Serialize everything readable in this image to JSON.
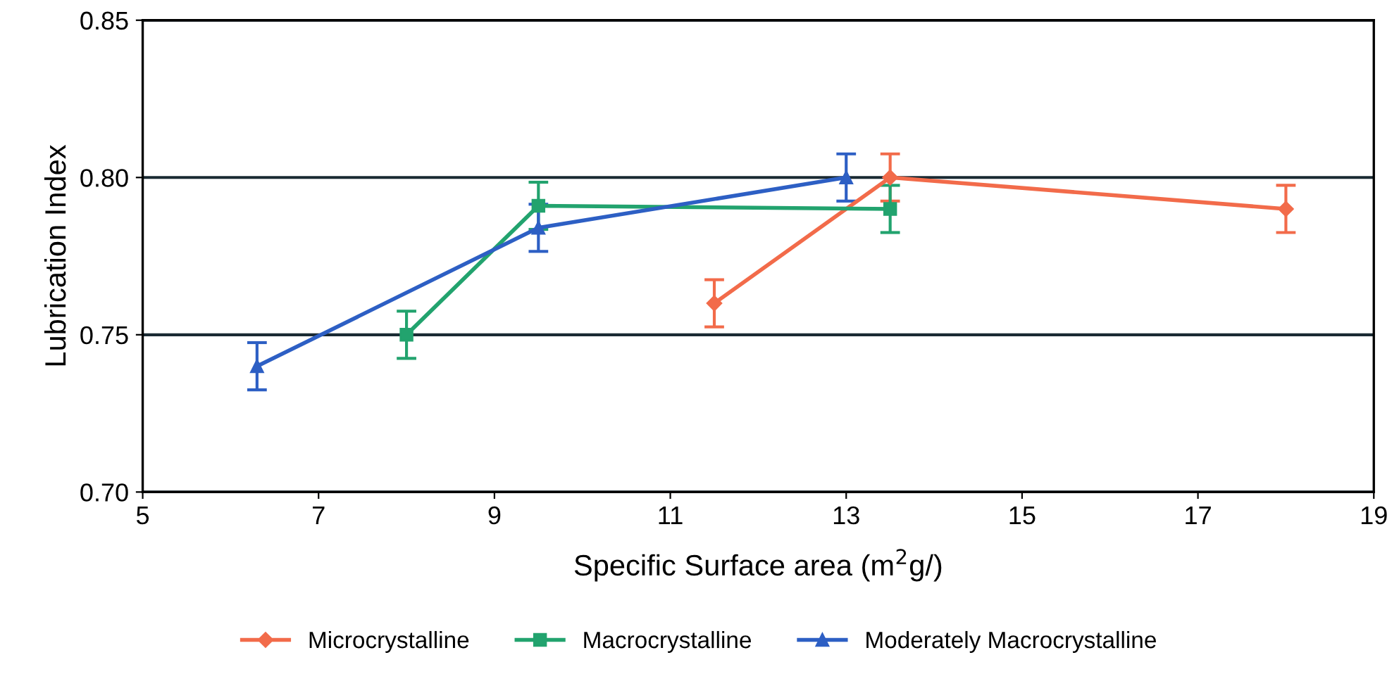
{
  "chart_data": {
    "type": "line",
    "xlabel": "Specific Surface area (m$^{2}$g/)",
    "ylabel": "Lubrication Index",
    "xlim": [
      5,
      19
    ],
    "xticks": [
      5,
      7,
      9,
      11,
      13,
      15,
      17,
      19
    ],
    "ylim": [
      0.7,
      0.85
    ],
    "yticks": [
      {
        "value": 0.7,
        "label": "0.70"
      },
      {
        "value": 0.75,
        "label": "0.75"
      },
      {
        "value": 0.8,
        "label": "0.80"
      },
      {
        "value": 0.85,
        "label": "0.85"
      }
    ],
    "grid": "y",
    "legend": "bottom",
    "series": [
      {
        "name": "Microcrystalline",
        "color": "#f26b4a",
        "marker": "diamond",
        "x": [
          11.5,
          13.5,
          18
        ],
        "values": [
          0.76,
          0.8,
          0.79
        ],
        "errors": [
          0.0075,
          0.0075,
          0.0075
        ]
      },
      {
        "name": "Macrocrystalline",
        "color": "#22a36e",
        "marker": "square",
        "x": [
          8,
          9.5,
          13.5
        ],
        "values": [
          0.75,
          0.791,
          0.79
        ],
        "errors": [
          0.0075,
          0.0075,
          0.0075
        ]
      },
      {
        "name": "Moderately Macrocrystalline",
        "color": "#2d5fc4",
        "marker": "triangle",
        "x": [
          6.3,
          9.5,
          13
        ],
        "values": [
          0.74,
          0.784,
          0.8
        ],
        "errors": [
          0.0075,
          0.0075,
          0.0075
        ]
      }
    ]
  }
}
